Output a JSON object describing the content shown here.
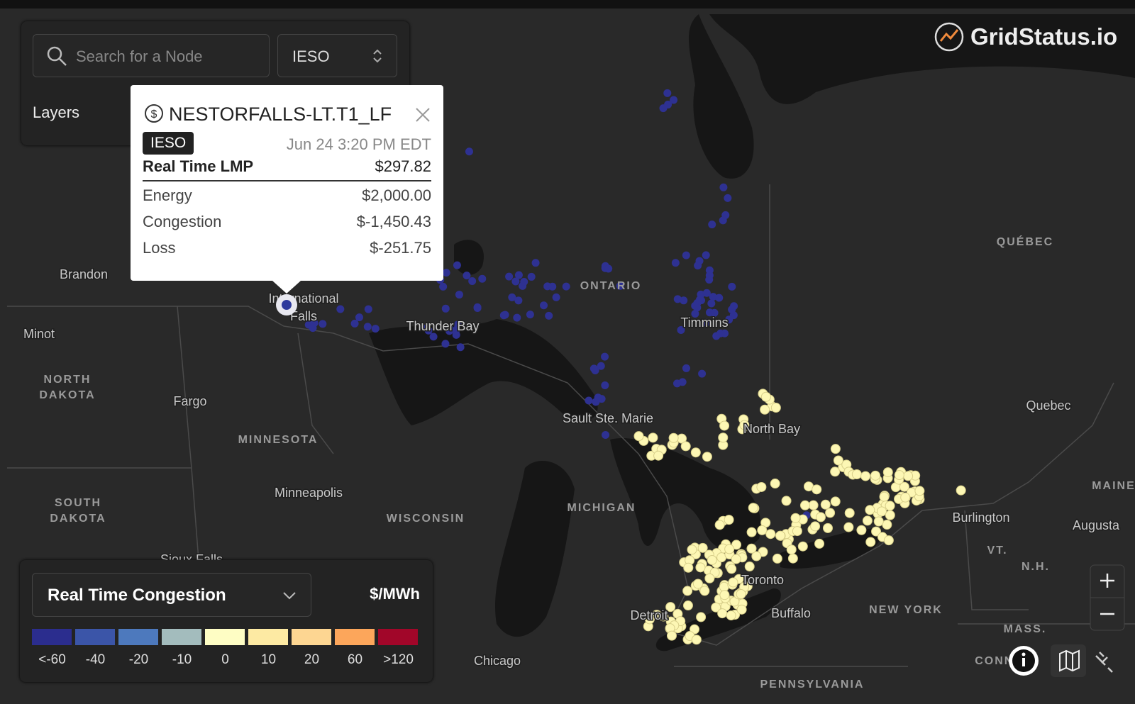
{
  "search": {
    "placeholder": "Search for a Node",
    "region": "IESO"
  },
  "layers": "Layers",
  "brand": "GridStatus.io",
  "popup": {
    "node": "NESTORFALLS-LT.T1_LF",
    "iso": "IESO",
    "timestamp": "Jun 24 3:20 PM EDT",
    "rows": [
      {
        "label": "Real Time LMP",
        "value": "$297.82"
      },
      {
        "label": "Energy",
        "value": "$2,000.00"
      },
      {
        "label": "Congestion",
        "value": "$-1,450.43"
      },
      {
        "label": "Loss",
        "value": "$-251.75"
      }
    ]
  },
  "map_labels": [
    "Brandon",
    "Minot",
    "NORTH",
    "DAKOTA",
    "Fargo",
    "MINNESOTA",
    "SOUTH",
    "DAKOTA",
    "Minneapolis",
    "Sioux Falls",
    "WISCONSIN",
    "Chicago",
    "MICHIGAN",
    "Detroit",
    "Toronto",
    "Buffalo",
    "NEW YORK",
    "PENNSYLVANIA",
    "Burlington",
    "VT.",
    "N.H.",
    "MASS.",
    "CONN.",
    "Augusta",
    "MAINE",
    "Quebec",
    "QUÉBEC",
    "North Bay",
    "Sault Ste. Marie",
    "Timmins",
    "Thunder Bay",
    "ONTARIO",
    "International",
    "Falls"
  ],
  "legend": {
    "metric": "Real Time Congestion",
    "unit": "$/MWh",
    "bins": [
      {
        "label": "<-60",
        "color": "#2b2d8e"
      },
      {
        "label": "-40",
        "color": "#3b55a8"
      },
      {
        "label": "-20",
        "color": "#4d79bd"
      },
      {
        "label": "-10",
        "color": "#a3bcbd"
      },
      {
        "label": "0",
        "color": "#fefdc4"
      },
      {
        "label": "10",
        "color": "#fdeaa3"
      },
      {
        "label": "20",
        "color": "#fdd692"
      },
      {
        "label": "60",
        "color": "#fca65b"
      },
      {
        "label": ">120",
        "color": "#a10629"
      }
    ]
  }
}
